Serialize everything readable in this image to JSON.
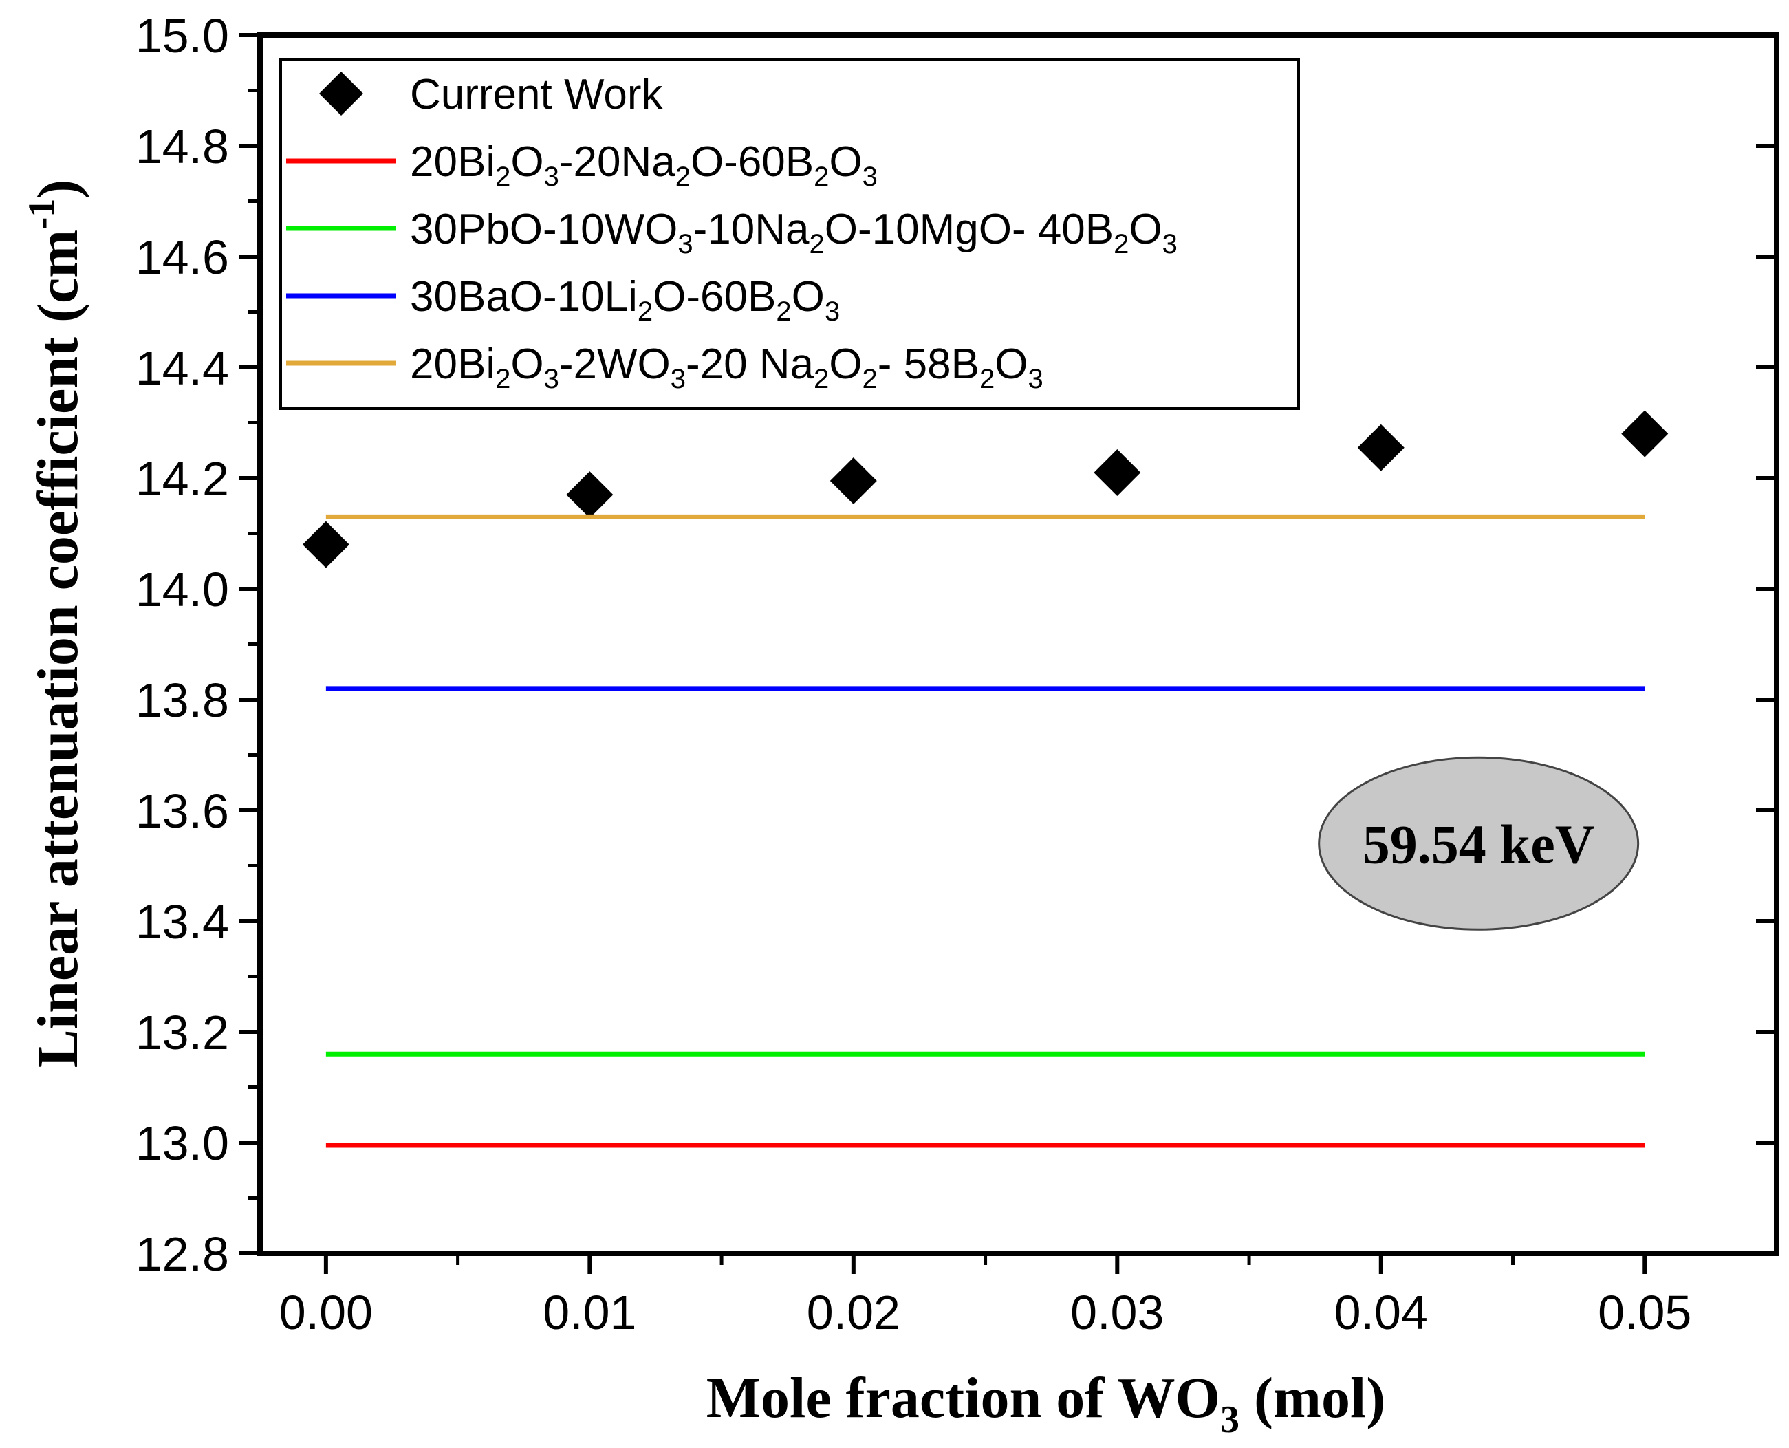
{
  "chart_data": {
    "type": "line",
    "title": "",
    "xlabel": {
      "main": "Mole fraction of WO",
      "sub": "3",
      "tail": " (mol)"
    },
    "ylabel": {
      "main": "Linear attenuation coefficient (cm",
      "sup": "-1",
      "tail": ")"
    },
    "xlim": [
      -0.0025,
      0.055
    ],
    "ylim": [
      12.8,
      15.0
    ],
    "xticks": [
      0.0,
      0.01,
      0.02,
      0.03,
      0.04,
      0.05
    ],
    "xtick_labels": [
      "0.00",
      "0.01",
      "0.02",
      "0.03",
      "0.04",
      "0.05"
    ],
    "yticks": [
      12.8,
      13.0,
      13.2,
      13.4,
      13.6,
      13.8,
      14.0,
      14.2,
      14.4,
      14.6,
      14.8,
      15.0
    ],
    "ytick_labels": [
      "12.8",
      "13.0",
      "13.2",
      "13.4",
      "13.6",
      "13.8",
      "14.0",
      "14.2",
      "14.4",
      "14.6",
      "14.8",
      "15.0"
    ],
    "grid": false,
    "legend_position": "top-left",
    "series": [
      {
        "name": "Current Work",
        "kind": "scatter",
        "marker": "diamond",
        "color": "#000000",
        "x": [
          0.0,
          0.01,
          0.02,
          0.03,
          0.04,
          0.05
        ],
        "y": [
          14.08,
          14.17,
          14.195,
          14.21,
          14.255,
          14.28
        ]
      },
      {
        "name": "20Bi2O3-20Na2O-60B2O3",
        "legend_parts": [
          [
            "20Bi",
            ""
          ],
          [
            "2",
            "sub"
          ],
          [
            "O",
            ""
          ],
          [
            "3",
            "sub"
          ],
          [
            "-20Na",
            ""
          ],
          [
            "2",
            "sub"
          ],
          [
            "O-60B",
            ""
          ],
          [
            "2",
            "sub"
          ],
          [
            "O",
            ""
          ],
          [
            "3",
            "sub"
          ]
        ],
        "kind": "line",
        "color": "#ff0000",
        "x": [
          0.0,
          0.05
        ],
        "y": [
          12.995,
          12.995
        ]
      },
      {
        "name": "30PbO-10WO3-10Na2O-10MgO- 40B2O3",
        "legend_parts": [
          [
            "30PbO-10WO",
            ""
          ],
          [
            "3",
            "sub"
          ],
          [
            "-10Na",
            ""
          ],
          [
            "2",
            "sub"
          ],
          [
            "O-10MgO- 40B",
            ""
          ],
          [
            "2",
            "sub"
          ],
          [
            "O",
            ""
          ],
          [
            "3",
            "sub"
          ]
        ],
        "kind": "line",
        "color": "#00ee00",
        "x": [
          0.0,
          0.05
        ],
        "y": [
          13.16,
          13.16
        ]
      },
      {
        "name": "30BaO-10Li2O-60B2O3",
        "legend_parts": [
          [
            "30BaO-10Li",
            ""
          ],
          [
            "2",
            "sub"
          ],
          [
            "O-60B",
            ""
          ],
          [
            "2",
            "sub"
          ],
          [
            "O",
            ""
          ],
          [
            "3",
            "sub"
          ]
        ],
        "kind": "line",
        "color": "#0000ff",
        "x": [
          0.0,
          0.05
        ],
        "y": [
          13.82,
          13.82
        ]
      },
      {
        "name": "20Bi2O3-2WO3-20 Na2O2- 58B2O3",
        "legend_parts": [
          [
            "20Bi",
            ""
          ],
          [
            "2",
            "sub"
          ],
          [
            "O",
            ""
          ],
          [
            "3",
            "sub"
          ],
          [
            "-2WO",
            ""
          ],
          [
            "3",
            "sub"
          ],
          [
            "-20 Na",
            ""
          ],
          [
            "2",
            "sub"
          ],
          [
            "O",
            ""
          ],
          [
            "2",
            "sub"
          ],
          [
            "- 58B",
            ""
          ],
          [
            "2",
            "sub"
          ],
          [
            "O",
            ""
          ],
          [
            "3",
            "sub"
          ]
        ],
        "kind": "line",
        "color": "#e0a93a",
        "x": [
          0.0,
          0.05
        ],
        "y": [
          14.13,
          14.13
        ]
      }
    ],
    "annotations": [
      {
        "text": "59.54 keV",
        "x": 0.0437,
        "y": 13.54,
        "shape": "ellipse",
        "fill": "#c8c8c8"
      }
    ]
  }
}
